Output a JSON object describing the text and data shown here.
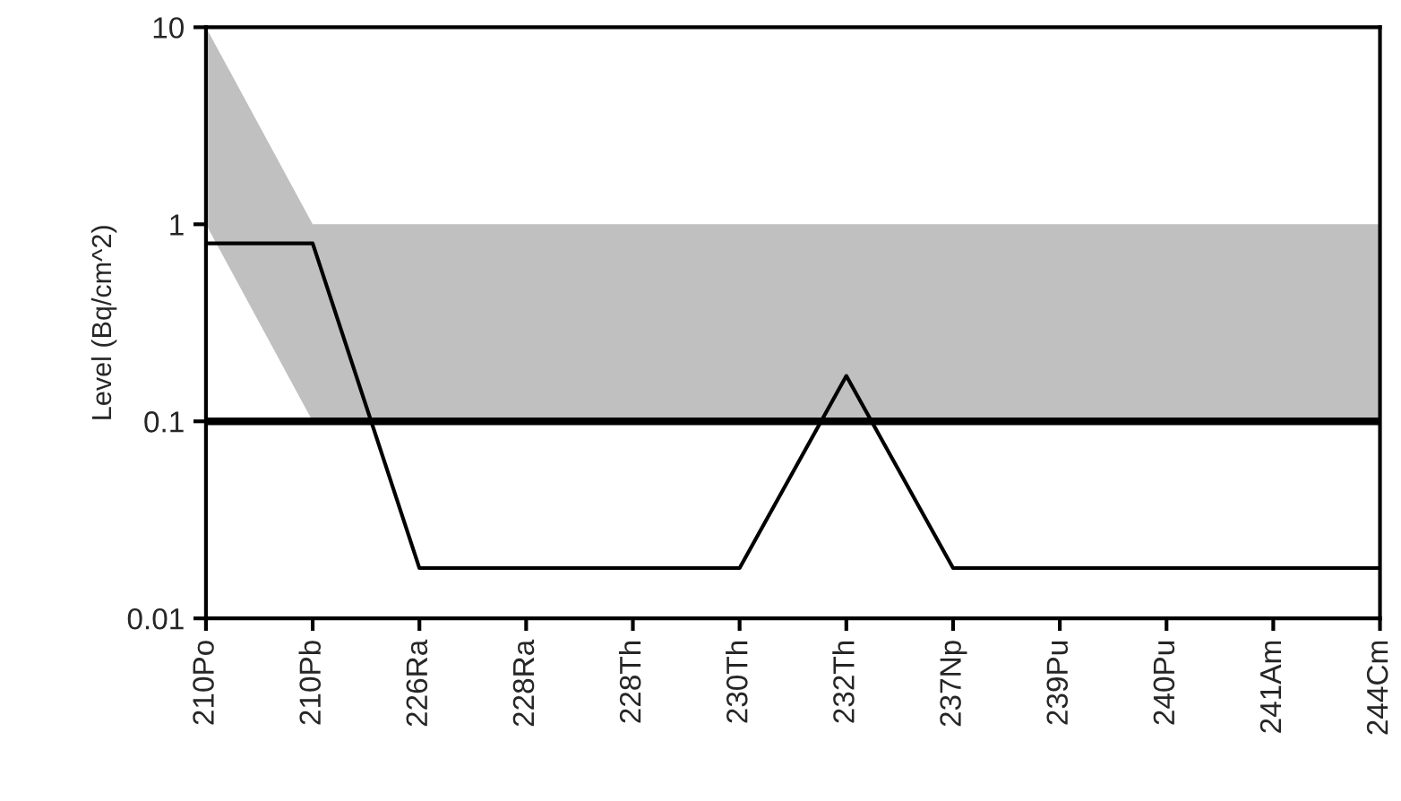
{
  "chart_data": {
    "type": "line",
    "ylabel": "Level (Bq/cm^2)",
    "log": "y",
    "categories": [
      "210Po",
      "210Pb",
      "226Ra",
      "228Ra",
      "228Th",
      "230Th",
      "232Th",
      "237Np",
      "239Pu",
      "240Pu",
      "241Am",
      "244Cm"
    ],
    "series": [
      {
        "color": "#c0c0c0",
        "values": [
          null,
          null,
          null,
          null,
          null,
          null,
          null,
          null,
          null,
          null,
          null,
          null
        ],
        "lower": [
          1,
          0.1,
          0.1,
          0.1,
          0.1,
          0.1,
          0.1,
          0.1,
          0.1,
          0.1,
          0.1,
          0.1
        ],
        "upper": [
          10,
          1,
          1,
          1,
          1,
          1,
          1,
          1,
          1,
          1,
          1,
          1
        ]
      },
      {
        "color": "#000000",
        "values": [
          0.8,
          0.8,
          0.018,
          0.018,
          0.018,
          0.018,
          0.17,
          0.018,
          0.018,
          0.018,
          0.018,
          0.018
        ]
      }
    ],
    "ref_lines": [
      {
        "axis": "y",
        "value": 0.1,
        "color": "#000000"
      }
    ],
    "ylim": [
      0.01,
      10
    ],
    "yticks": [
      0.01,
      0.1,
      1,
      10
    ],
    "grid": false,
    "legend": false,
    "marker": "none",
    "line_style": "solid"
  }
}
